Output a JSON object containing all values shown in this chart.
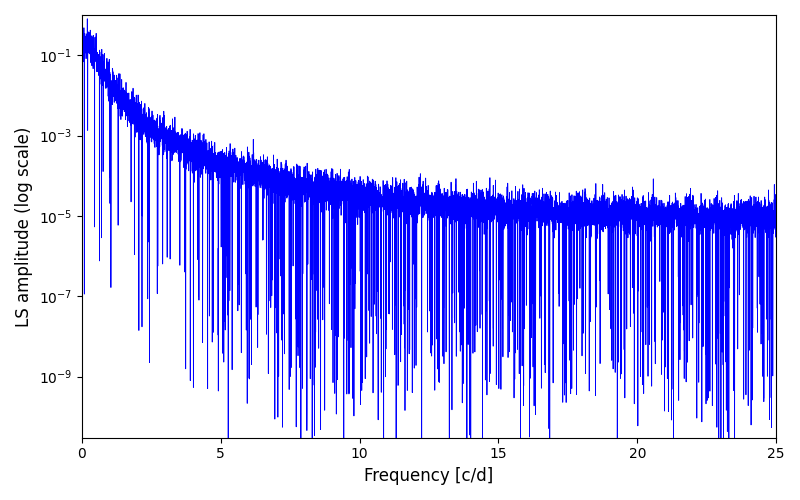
{
  "xlabel": "Frequency [c/d]",
  "ylabel": "LS amplitude (log scale)",
  "xlim": [
    0,
    25
  ],
  "ylim": [
    3e-11,
    1.0
  ],
  "line_color": "#0000ff",
  "line_width": 0.6,
  "figsize": [
    8.0,
    5.0
  ],
  "dpi": 100,
  "seed": 77,
  "n_points": 8000,
  "fmax": 25.0,
  "alpha": 3.0,
  "peak_amplitude": 0.2,
  "noise_floor": 8e-06,
  "log_noise_sigma": 0.5,
  "n_nulls": 200,
  "null_depth_min": 2.0,
  "null_depth_max": 6.0,
  "yticks": [
    1e-09,
    1e-07,
    1e-05,
    0.001,
    0.1
  ],
  "xticks": [
    0,
    5,
    10,
    15,
    20,
    25
  ]
}
